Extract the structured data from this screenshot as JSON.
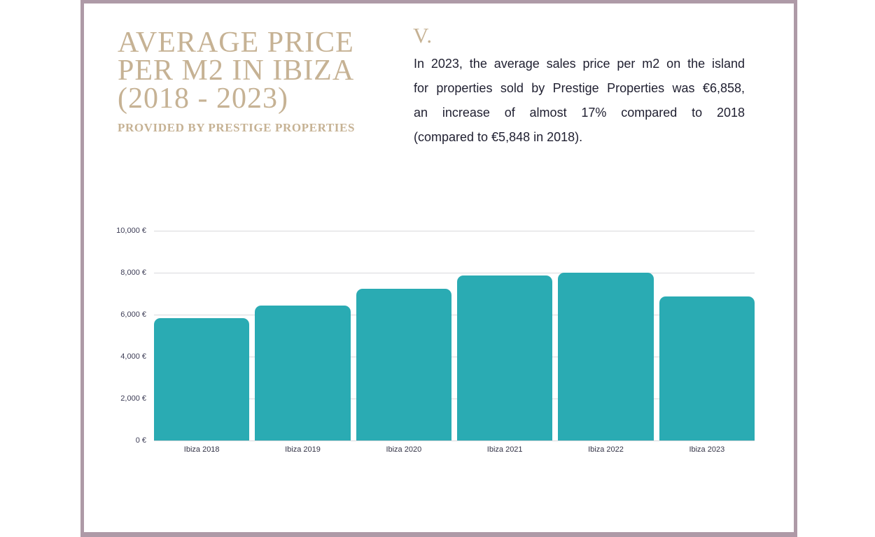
{
  "colors": {
    "frame_border": "#ae9aa7",
    "accent_gold": "#c6b294",
    "bar_teal": "#2aabb3",
    "body_text": "#1f1f30",
    "gridline": "#d9d9dc"
  },
  "header": {
    "title_lines": [
      "AVERAGE PRICE",
      "PER M2 IN IBIZA",
      "(2018 - 2023)"
    ],
    "subtitle": "PROVIDED BY PRESTIGE PROPERTIES"
  },
  "annotation": {
    "section_marker": "V.",
    "body": "In 2023, the average sales price per m2 on the island for properties sold by Prestige Properties was €6,858, an increase of almost 17% compared to 2018 (compared to €5,848 in 2018).",
    "body_lines": [
      "In 2023, the average sales price per m2 on the island",
      "for properties sold by Prestige Properties was €6,858,",
      "an increase of almost 17% compared to 2018",
      "(compared to €5,848 in 2018)."
    ]
  },
  "chart_data": {
    "type": "bar",
    "title": "",
    "xlabel": "",
    "ylabel": "",
    "categories": [
      "Ibiza 2018",
      "Ibiza 2019",
      "Ibiza 2020",
      "Ibiza 2021",
      "Ibiza 2022",
      "Ibiza 2023"
    ],
    "values": [
      5848,
      6420,
      7220,
      7870,
      8000,
      6858
    ],
    "ylim": [
      0,
      10000
    ],
    "ytick_values": [
      0,
      2000,
      4000,
      6000,
      8000,
      10000
    ],
    "ytick_labels": [
      "0 €",
      "2,000 €",
      "4,000 €",
      "6,000 €",
      "8,000 €",
      "10,000 €"
    ],
    "grid": true,
    "legend": false,
    "bar_color": "#2aabb3"
  }
}
